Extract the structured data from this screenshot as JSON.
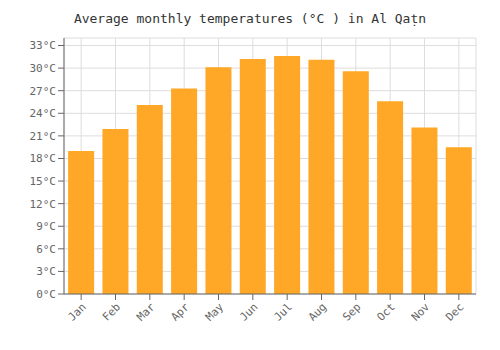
{
  "chart_data": {
    "type": "bar",
    "title": "Average monthly temperatures (°C ) in Al Qaṭn",
    "categories": [
      "Jan",
      "Feb",
      "Mar",
      "Apr",
      "May",
      "Jun",
      "Jul",
      "Aug",
      "Sep",
      "Oct",
      "Nov",
      "Dec"
    ],
    "values": [
      19.0,
      21.9,
      25.1,
      27.3,
      30.1,
      31.2,
      31.6,
      31.1,
      29.6,
      25.6,
      22.1,
      19.5
    ],
    "color": "#FFA726",
    "ylim": [
      0,
      34
    ],
    "yticks": [
      {
        "value": 0,
        "label": "0°C"
      },
      {
        "value": 3,
        "label": "3°C"
      },
      {
        "value": 6,
        "label": "6°C"
      },
      {
        "value": 9,
        "label": "9°C"
      },
      {
        "value": 12,
        "label": "12°C"
      },
      {
        "value": 15,
        "label": "15°C"
      },
      {
        "value": 18,
        "label": "18°C"
      },
      {
        "value": 21,
        "label": "21°C"
      },
      {
        "value": 24,
        "label": "24°C"
      },
      {
        "value": 27,
        "label": "27°C"
      },
      {
        "value": 30,
        "label": "30°C"
      },
      {
        "value": 33,
        "label": "33°C"
      }
    ],
    "grid": true
  }
}
